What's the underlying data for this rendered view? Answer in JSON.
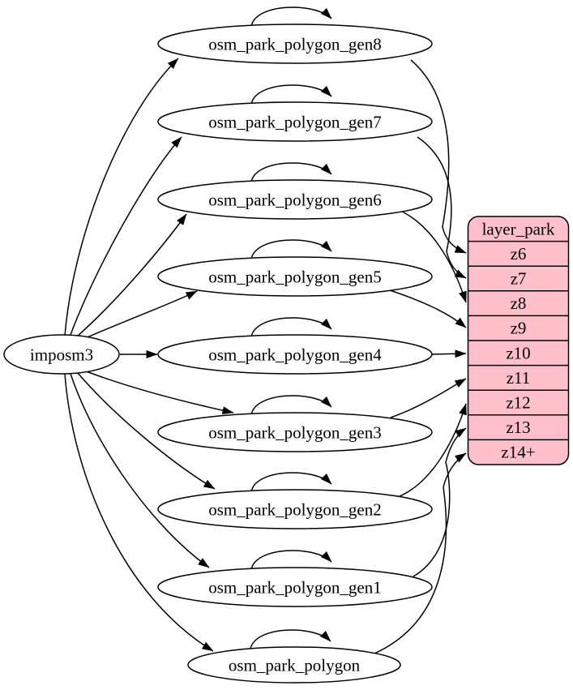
{
  "colors": {
    "background": "#ffffff",
    "node_fill": "#ffffff",
    "table_fill": "#ffc0cb",
    "stroke": "#000000",
    "text": "#000000"
  },
  "nodes": [
    {
      "id": "imposm3",
      "label": "imposm3"
    },
    {
      "id": "osm_park_polygon_gen8",
      "label": "osm_park_polygon_gen8"
    },
    {
      "id": "osm_park_polygon_gen7",
      "label": "osm_park_polygon_gen7"
    },
    {
      "id": "osm_park_polygon_gen6",
      "label": "osm_park_polygon_gen6"
    },
    {
      "id": "osm_park_polygon_gen5",
      "label": "osm_park_polygon_gen5"
    },
    {
      "id": "osm_park_polygon_gen4",
      "label": "osm_park_polygon_gen4"
    },
    {
      "id": "osm_park_polygon_gen3",
      "label": "osm_park_polygon_gen3"
    },
    {
      "id": "osm_park_polygon_gen2",
      "label": "osm_park_polygon_gen2"
    },
    {
      "id": "osm_park_polygon_gen1",
      "label": "osm_park_polygon_gen1"
    },
    {
      "id": "osm_park_polygon",
      "label": "osm_park_polygon"
    }
  ],
  "layer_table": {
    "title": "layer_park",
    "rows": [
      "z6",
      "z7",
      "z8",
      "z9",
      "z10",
      "z11",
      "z12",
      "z13",
      "z14+"
    ]
  },
  "edges": [
    {
      "from": "imposm3",
      "to": "osm_park_polygon_gen8"
    },
    {
      "from": "imposm3",
      "to": "osm_park_polygon_gen7"
    },
    {
      "from": "imposm3",
      "to": "osm_park_polygon_gen6"
    },
    {
      "from": "imposm3",
      "to": "osm_park_polygon_gen5"
    },
    {
      "from": "imposm3",
      "to": "osm_park_polygon_gen4"
    },
    {
      "from": "imposm3",
      "to": "osm_park_polygon_gen3"
    },
    {
      "from": "imposm3",
      "to": "osm_park_polygon_gen2"
    },
    {
      "from": "imposm3",
      "to": "osm_park_polygon_gen1"
    },
    {
      "from": "imposm3",
      "to": "osm_park_polygon"
    },
    {
      "from": "osm_park_polygon_gen8",
      "to": "osm_park_polygon_gen8"
    },
    {
      "from": "osm_park_polygon_gen7",
      "to": "osm_park_polygon_gen7"
    },
    {
      "from": "osm_park_polygon_gen6",
      "to": "osm_park_polygon_gen6"
    },
    {
      "from": "osm_park_polygon_gen5",
      "to": "osm_park_polygon_gen5"
    },
    {
      "from": "osm_park_polygon_gen4",
      "to": "osm_park_polygon_gen4"
    },
    {
      "from": "osm_park_polygon_gen3",
      "to": "osm_park_polygon_gen3"
    },
    {
      "from": "osm_park_polygon_gen2",
      "to": "osm_park_polygon_gen2"
    },
    {
      "from": "osm_park_polygon_gen1",
      "to": "osm_park_polygon_gen1"
    },
    {
      "from": "osm_park_polygon",
      "to": "osm_park_polygon"
    },
    {
      "from": "osm_park_polygon_gen8",
      "to": "layer_park.z6"
    },
    {
      "from": "osm_park_polygon_gen7",
      "to": "layer_park.z7"
    },
    {
      "from": "osm_park_polygon_gen6",
      "to": "layer_park.z8"
    },
    {
      "from": "osm_park_polygon_gen5",
      "to": "layer_park.z9"
    },
    {
      "from": "osm_park_polygon_gen4",
      "to": "layer_park.z10"
    },
    {
      "from": "osm_park_polygon_gen3",
      "to": "layer_park.z11"
    },
    {
      "from": "osm_park_polygon_gen2",
      "to": "layer_park.z12"
    },
    {
      "from": "osm_park_polygon_gen1",
      "to": "layer_park.z13"
    },
    {
      "from": "osm_park_polygon",
      "to": "layer_park.z14+"
    }
  ]
}
